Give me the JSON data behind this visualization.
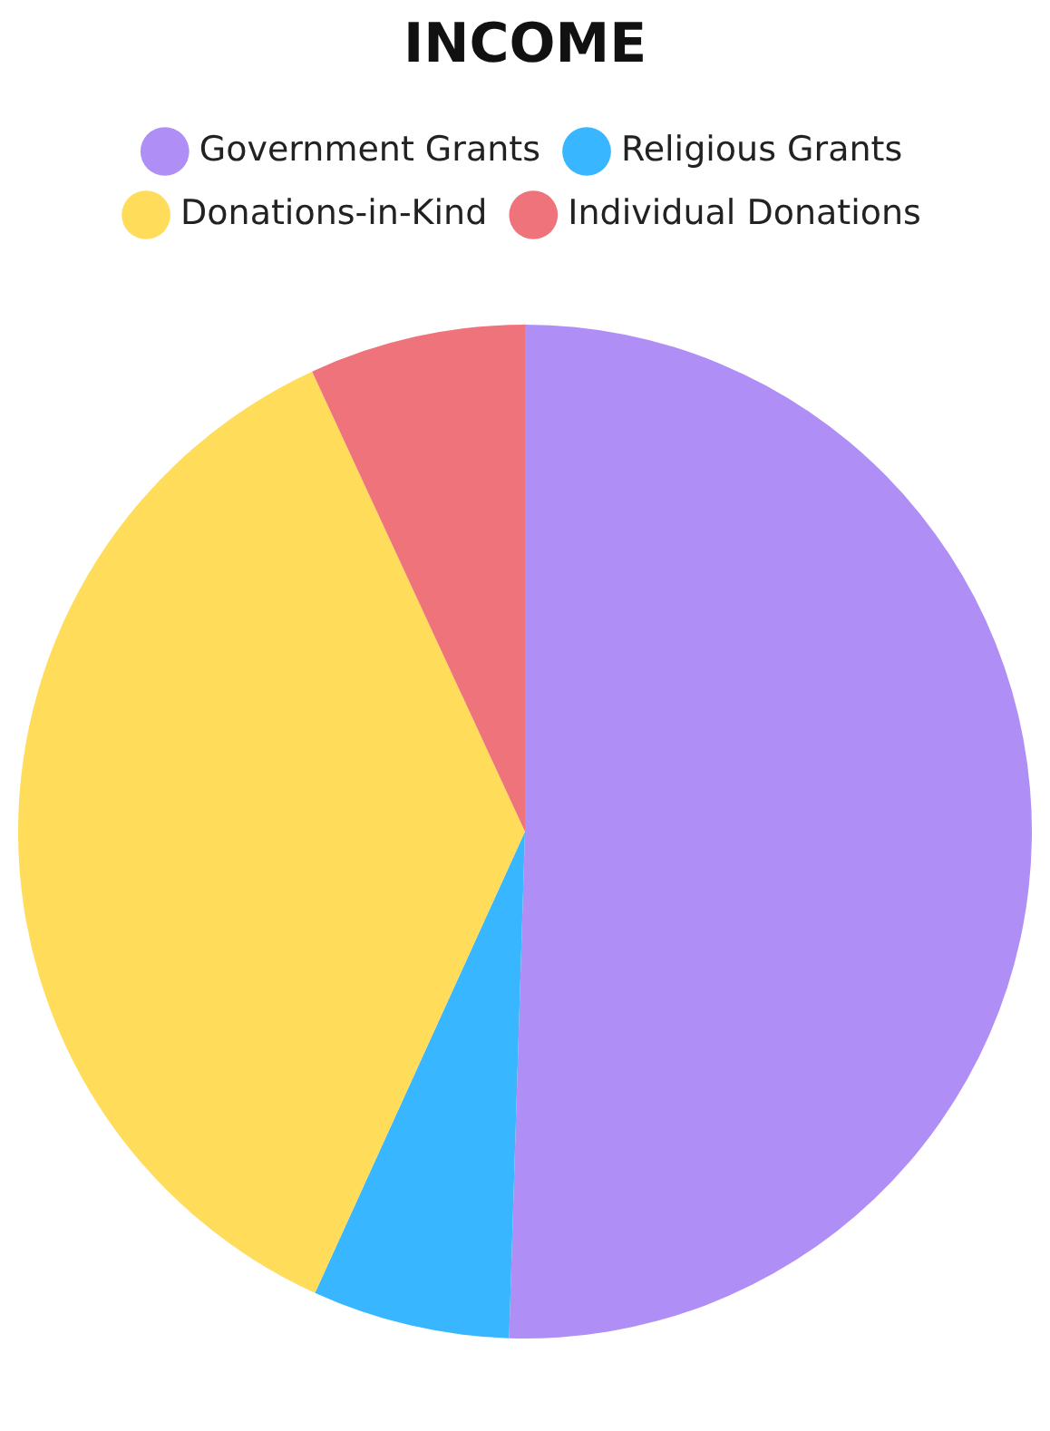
{
  "chart_data": {
    "type": "pie",
    "title": "INCOME",
    "categories": [
      "Government Grants",
      "Religious Grants",
      "Donations-in-Kind",
      "Individual Donations"
    ],
    "values": [
      50.5,
      6.3,
      36.3,
      6.9
    ],
    "colors": [
      "#af8ef5",
      "#38b6ff",
      "#ffdc5a",
      "#ef737b"
    ],
    "legend": "top"
  }
}
